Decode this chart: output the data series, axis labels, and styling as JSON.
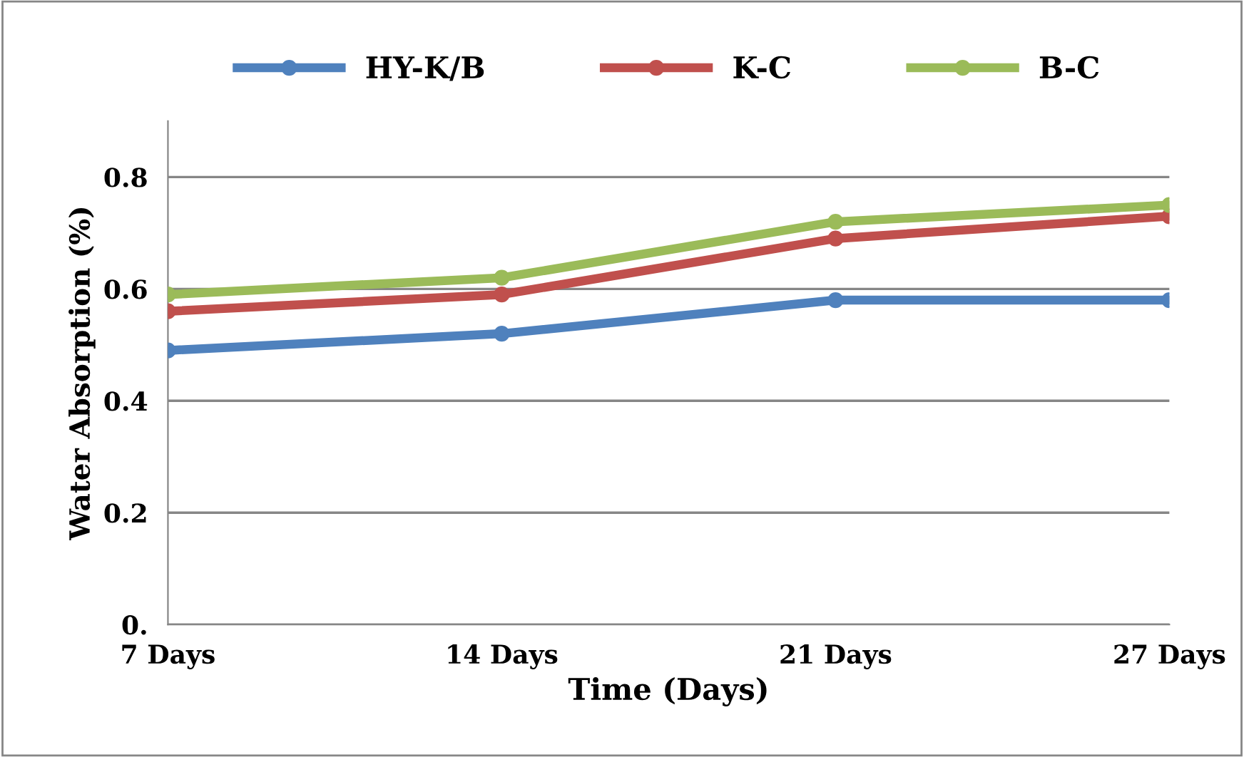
{
  "chart_data": {
    "type": "line",
    "xlabel": "Time (Days)",
    "ylabel": "Water Absorption (%)",
    "categories": [
      "7 Days",
      "14 Days",
      "21 Days",
      "27 Days"
    ],
    "series": [
      {
        "name": "HY-K/B",
        "color": "#4f81bd",
        "values": [
          0.49,
          0.52,
          0.58,
          0.58
        ]
      },
      {
        "name": "K-C",
        "color": "#c0504d",
        "values": [
          0.56,
          0.59,
          0.69,
          0.73
        ]
      },
      {
        "name": "B-C",
        "color": "#9bbb59",
        "values": [
          0.59,
          0.62,
          0.72,
          0.75
        ]
      }
    ],
    "ylim": [
      0,
      0.9
    ],
    "yticks": [
      {
        "value": 0,
        "label": "0."
      },
      0.2,
      0.4,
      0.6,
      0.8
    ],
    "grid": "y",
    "legend": "top",
    "marker": "circle",
    "line_style": "solid"
  }
}
